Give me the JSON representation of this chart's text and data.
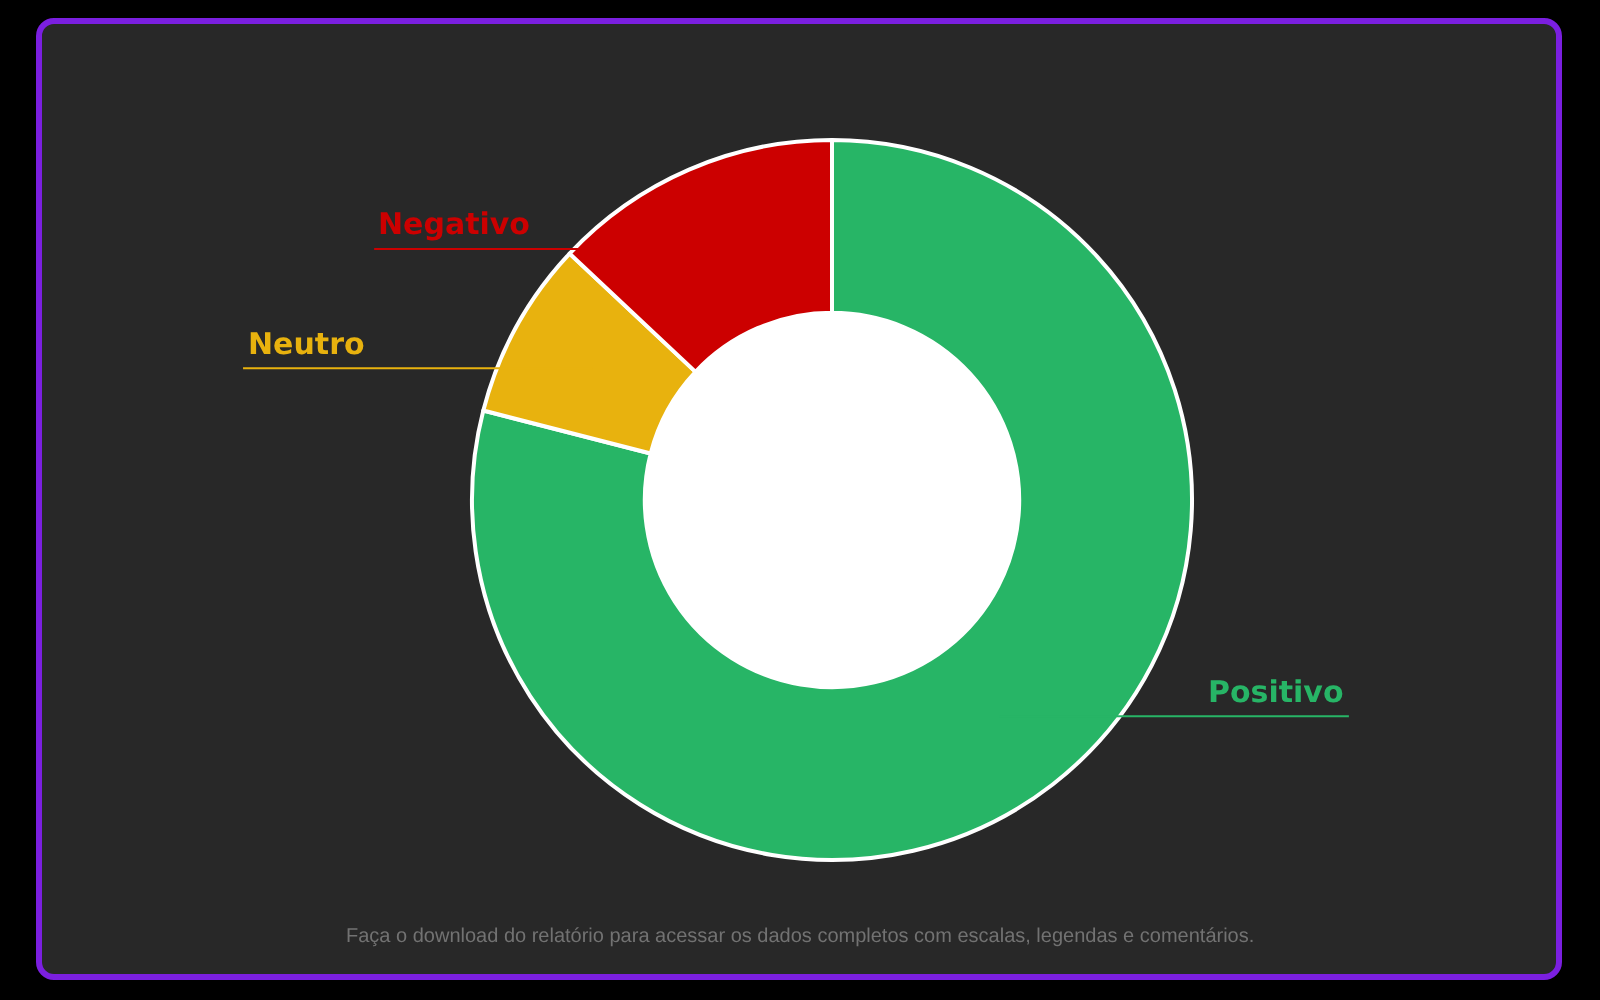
{
  "chart_data": {
    "type": "donut",
    "categories": [
      "Positivo",
      "Neutro",
      "Negativo"
    ],
    "values": [
      79,
      8,
      13
    ],
    "colors": [
      "#27b566",
      "#e8b20e",
      "#cc0000"
    ],
    "annotations": [
      "Faça o download do relatório para acessar os dados completos com escalas, legendas e comentários."
    ]
  }
}
